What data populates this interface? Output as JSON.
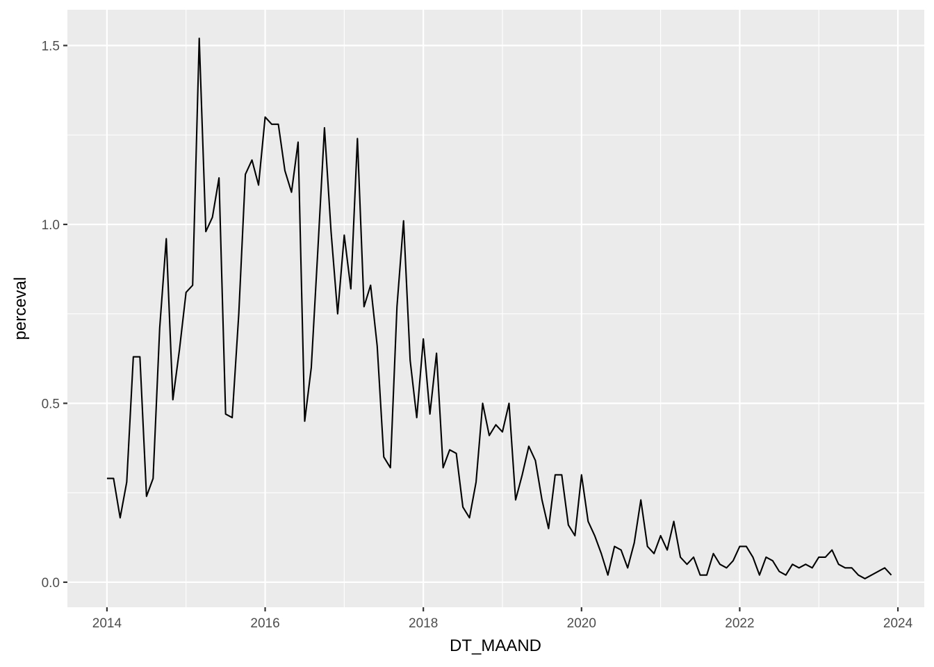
{
  "chart_data": {
    "type": "line",
    "title": "",
    "xlabel": "DT_MAAND",
    "ylabel": "perceval",
    "xlim": [
      "2013-07-01",
      "2024-05-01"
    ],
    "ylim": [
      -0.07,
      1.6
    ],
    "x_ticks": [
      "2014",
      "2016",
      "2018",
      "2020",
      "2022",
      "2024"
    ],
    "y_ticks": [
      "0.0",
      "0.5",
      "1.0",
      "1.5"
    ],
    "grid": true,
    "legend": "none",
    "colors": {
      "panel": "#ebebeb",
      "grid": "#ffffff",
      "line": "#000000",
      "ticks": "#4d4d4d"
    },
    "series": [
      {
        "x": [
          "2014-01",
          "2014-02",
          "2014-03",
          "2014-04",
          "2014-05",
          "2014-06",
          "2014-07",
          "2014-08",
          "2014-09",
          "2014-10",
          "2014-11",
          "2014-12",
          "2015-01",
          "2015-02",
          "2015-03",
          "2015-04",
          "2015-05",
          "2015-06",
          "2015-07",
          "2015-08",
          "2015-09",
          "2015-10",
          "2015-11",
          "2015-12",
          "2016-01",
          "2016-02",
          "2016-03",
          "2016-04",
          "2016-05",
          "2016-06",
          "2016-07",
          "2016-08",
          "2016-09",
          "2016-10",
          "2016-11",
          "2016-12",
          "2017-01",
          "2017-02",
          "2017-03",
          "2017-04",
          "2017-05",
          "2017-06",
          "2017-07",
          "2017-08",
          "2017-09",
          "2017-10",
          "2017-11",
          "2017-12",
          "2018-01",
          "2018-02",
          "2018-03",
          "2018-04",
          "2018-05",
          "2018-06",
          "2018-07",
          "2018-08",
          "2018-09",
          "2018-10",
          "2018-11",
          "2018-12",
          "2019-01",
          "2019-02",
          "2019-03",
          "2019-04",
          "2019-05",
          "2019-06",
          "2019-07",
          "2019-08",
          "2019-09",
          "2019-10",
          "2019-11",
          "2019-12",
          "2020-01",
          "2020-02",
          "2020-03",
          "2020-04",
          "2020-05",
          "2020-06",
          "2020-07",
          "2020-08",
          "2020-09",
          "2020-10",
          "2020-11",
          "2020-12",
          "2021-01",
          "2021-02",
          "2021-03",
          "2021-04",
          "2021-05",
          "2021-06",
          "2021-07",
          "2021-08",
          "2021-09",
          "2021-10",
          "2021-11",
          "2021-12",
          "2022-01",
          "2022-02",
          "2022-03",
          "2022-04",
          "2022-05",
          "2022-06",
          "2022-07",
          "2022-08",
          "2022-09",
          "2022-10",
          "2022-11",
          "2022-12",
          "2023-01",
          "2023-02",
          "2023-03",
          "2023-04",
          "2023-05",
          "2023-06",
          "2023-07",
          "2023-08",
          "2023-11",
          "2023-12"
        ],
        "values": [
          0.29,
          0.29,
          0.18,
          0.28,
          0.63,
          0.63,
          0.24,
          0.29,
          0.71,
          0.96,
          0.51,
          0.65,
          0.81,
          0.83,
          1.52,
          0.98,
          1.02,
          1.13,
          0.47,
          0.46,
          0.75,
          1.14,
          1.18,
          1.11,
          1.3,
          1.28,
          1.28,
          1.15,
          1.09,
          1.23,
          0.45,
          0.6,
          0.93,
          1.27,
          0.98,
          0.75,
          0.97,
          0.82,
          1.24,
          0.77,
          0.83,
          0.66,
          0.35,
          0.32,
          0.77,
          1.01,
          0.62,
          0.46,
          0.68,
          0.47,
          0.64,
          0.32,
          0.37,
          0.36,
          0.21,
          0.18,
          0.28,
          0.5,
          0.41,
          0.44,
          0.42,
          0.5,
          0.23,
          0.3,
          0.38,
          0.34,
          0.23,
          0.15,
          0.3,
          0.3,
          0.16,
          0.13,
          0.3,
          0.17,
          0.13,
          0.08,
          0.02,
          0.1,
          0.09,
          0.04,
          0.11,
          0.23,
          0.1,
          0.08,
          0.13,
          0.09,
          0.17,
          0.07,
          0.05,
          0.07,
          0.02,
          0.02,
          0.08,
          0.05,
          0.04,
          0.06,
          0.1,
          0.1,
          0.07,
          0.02,
          0.07,
          0.06,
          0.03,
          0.02,
          0.05,
          0.04,
          0.05,
          0.04,
          0.07,
          0.07,
          0.09,
          0.05,
          0.04,
          0.04,
          0.02,
          0.01,
          0.04,
          0.02
        ]
      }
    ]
  }
}
